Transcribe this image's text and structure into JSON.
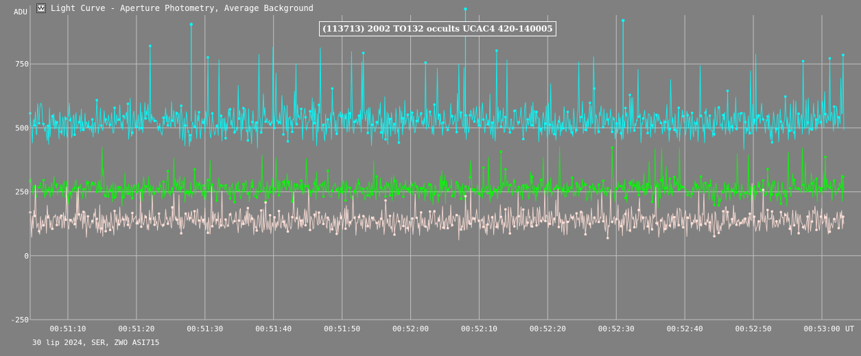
{
  "window": {
    "title": "Light Curve - Aperture Photometry, Average Background",
    "icon": "light-curve-app-icon"
  },
  "footer": {
    "text": "30 lip 2024, SER, ZWO ASI715"
  },
  "colors": {
    "background": "#808080",
    "grid": "#c0c0c0",
    "series_target": "#00ffff",
    "series_comparison": "#00ff00",
    "series_background": "#ffe0d8"
  },
  "chart_data": {
    "type": "scatter",
    "title": "(113713) 2002 TO132 occults UCAC4 420-140005",
    "ylabel": "ADU",
    "xlabel": "UT",
    "ylim": [
      -250,
      1000
    ],
    "xlim_seconds_after_00_51_00": [
      4.5,
      123.2
    ],
    "grid": true,
    "y_ticks": [
      -250,
      0,
      250,
      500,
      750
    ],
    "x_ticks": [
      "00:51:10",
      "00:51:20",
      "00:51:30",
      "00:51:40",
      "00:51:50",
      "00:52:00",
      "00:52:10",
      "00:52:20",
      "00:52:30",
      "00:52:40",
      "00:52:50",
      "00:53:00"
    ],
    "series": [
      {
        "color": "#00ffff",
        "mean": 525,
        "spread_low": 390,
        "spread_high": 830,
        "marker": "dot"
      },
      {
        "color": "#00ff00",
        "mean": 260,
        "spread_low": 150,
        "spread_high": 430,
        "marker": "dot"
      },
      {
        "color": "#ffe0d8",
        "mean": 135,
        "spread_low": -10,
        "spread_high": 285,
        "marker": "dot"
      }
    ],
    "notable_points": [
      {
        "x": "00:51:28",
        "y": 905,
        "series": 0
      },
      {
        "x": "00:52:08",
        "y": 965,
        "series": 0
      },
      {
        "x": "00:52:31",
        "y": 920,
        "series": 0
      }
    ]
  }
}
